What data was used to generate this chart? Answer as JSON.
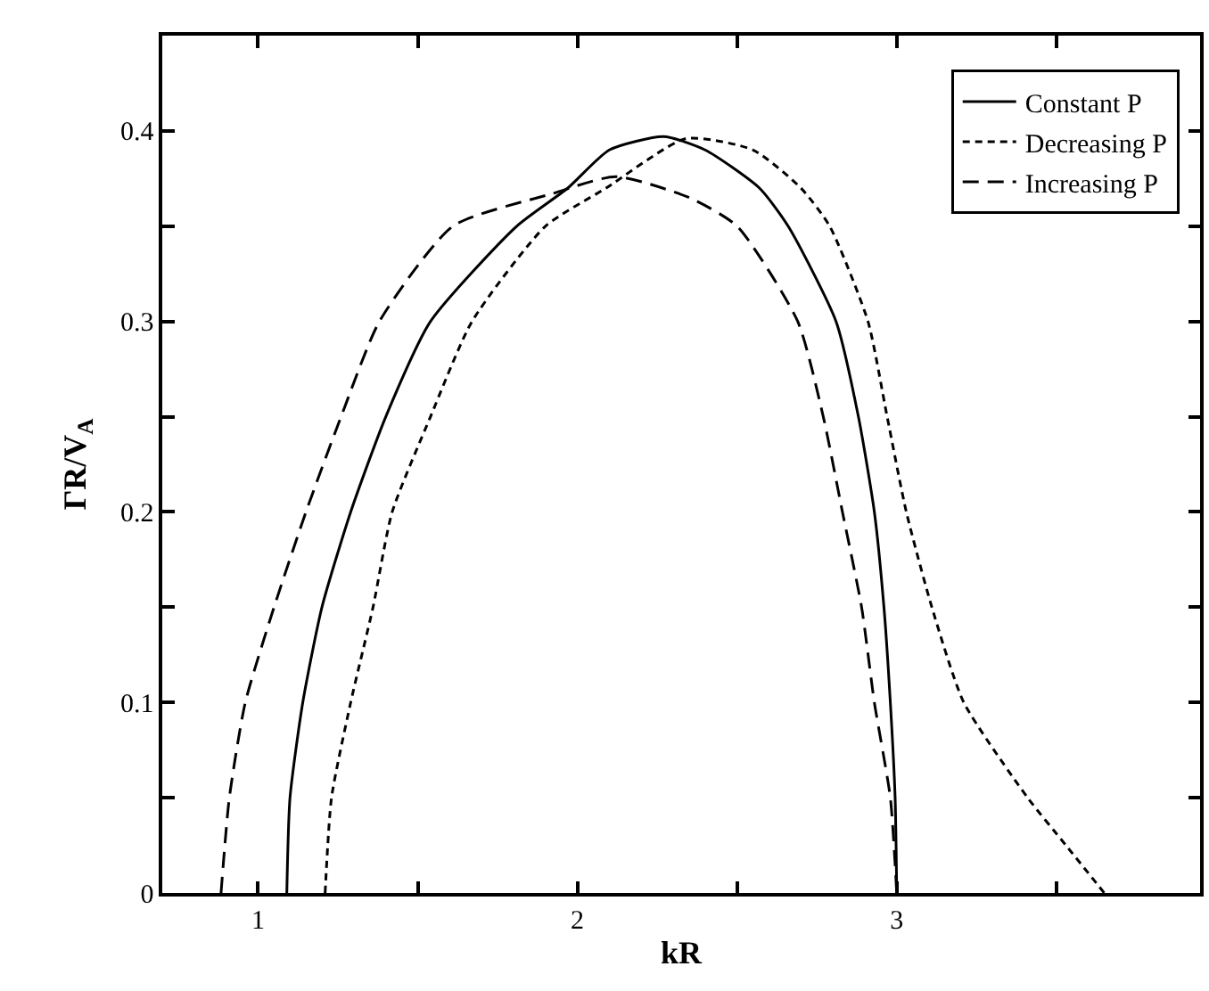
{
  "chart_data": {
    "type": "line",
    "xlabel": "kR",
    "ylabel": "ΓR/V$_{A}$",
    "xlim": [
      0.7,
      3.95
    ],
    "xticks": [
      1,
      {
        "value": 1.5,
        "label": null
      },
      2,
      {
        "value": 2.5,
        "label": null
      },
      3,
      {
        "value": 3.5,
        "label": null
      }
    ],
    "ylim": [
      0,
      0.45
    ],
    "yticks": [
      0,
      {
        "value": 0.05,
        "label": null
      },
      0.1,
      {
        "value": 0.15,
        "label": null
      },
      0.2,
      {
        "value": 0.25,
        "label": null
      },
      0.3,
      {
        "value": 0.35,
        "label": null
      },
      0.4
    ],
    "grid": false,
    "legend": "top right",
    "marker": "none",
    "series": [
      {
        "name": "Constant P",
        "color": "#000000",
        "line_style": "solid",
        "x": [
          1.09,
          1.1,
          1.14,
          1.2,
          1.29,
          1.4,
          1.54,
          1.81,
          1.97,
          2.1,
          2.27,
          2.4,
          2.57,
          2.66,
          2.81,
          2.88,
          2.93,
          2.96,
          2.98,
          2.995,
          3.0
        ],
        "values": [
          0,
          0.05,
          0.1,
          0.15,
          0.2,
          0.25,
          0.3,
          0.35,
          0.37,
          0.39,
          0.397,
          0.39,
          0.37,
          0.35,
          0.3,
          0.25,
          0.2,
          0.15,
          0.1,
          0.05,
          0
        ]
      },
      {
        "name": "Decreasing P",
        "color": "#000000",
        "line_style": "dotted",
        "x": [
          1.21,
          1.23,
          1.29,
          1.36,
          1.42,
          1.54,
          1.67,
          1.9,
          2.09,
          2.34,
          2.55,
          2.7,
          2.79,
          2.91,
          2.97,
          3.03,
          3.11,
          3.21,
          3.41,
          3.53,
          3.65
        ],
        "values": [
          0,
          0.05,
          0.1,
          0.15,
          0.2,
          0.25,
          0.3,
          0.35,
          0.37,
          0.396,
          0.39,
          0.37,
          0.35,
          0.3,
          0.25,
          0.2,
          0.15,
          0.1,
          0.05,
          0.025,
          0
        ]
      },
      {
        "name": "Increasing P",
        "color": "#000000",
        "line_style": "dashed",
        "x": [
          0.884,
          0.91,
          0.96,
          1.05,
          1.15,
          1.26,
          1.38,
          1.61,
          1.92,
          2.12,
          2.35,
          2.5,
          2.69,
          2.77,
          2.83,
          2.89,
          2.93,
          2.98,
          3.0
        ],
        "values": [
          0,
          0.05,
          0.1,
          0.15,
          0.2,
          0.25,
          0.3,
          0.35,
          0.367,
          0.376,
          0.365,
          0.35,
          0.3,
          0.25,
          0.2,
          0.15,
          0.1,
          0.05,
          0
        ]
      }
    ]
  }
}
